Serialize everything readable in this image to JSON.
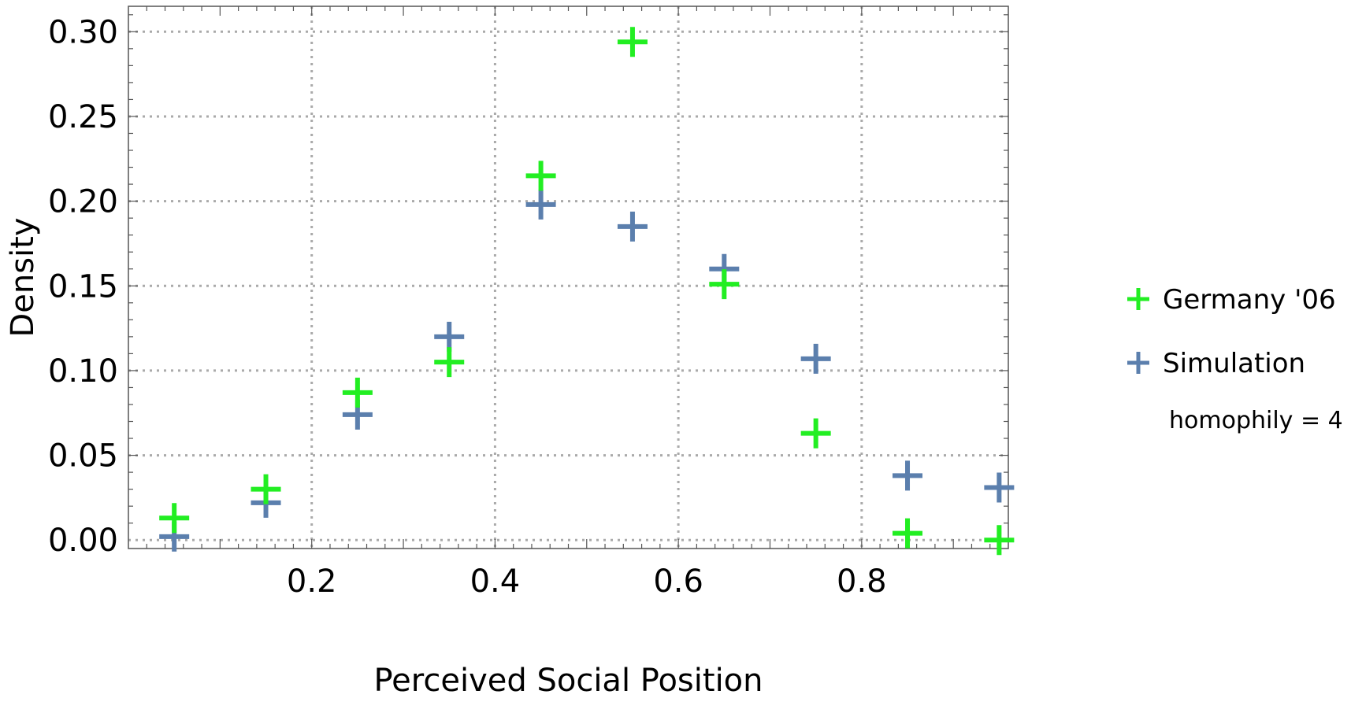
{
  "chart_data": {
    "type": "scatter",
    "title": "",
    "xlabel": "Perceived Social Position",
    "ylabel": "Density",
    "xlim": [
      0.0,
      0.96
    ],
    "ylim": [
      -0.005,
      0.315
    ],
    "xticks": [
      0.2,
      0.4,
      0.6,
      0.8
    ],
    "xtick_labels": [
      "0.2",
      "0.4",
      "0.6",
      "0.8"
    ],
    "yticks": [
      0.0,
      0.05,
      0.1,
      0.15,
      0.2,
      0.25,
      0.3
    ],
    "ytick_labels": [
      "0.00",
      "0.05",
      "0.10",
      "0.15",
      "0.20",
      "0.25",
      "0.30"
    ],
    "grid": true,
    "legend_position": "right",
    "legend_note": "homophily = 4",
    "series": [
      {
        "name": "Germany '06",
        "color": "#22ee22",
        "marker": "plus",
        "x": [
          0.05,
          0.15,
          0.25,
          0.35,
          0.45,
          0.55,
          0.65,
          0.75,
          0.85,
          0.95
        ],
        "y": [
          0.013,
          0.03,
          0.087,
          0.105,
          0.215,
          0.294,
          0.151,
          0.063,
          0.004,
          0.0
        ]
      },
      {
        "name": "Simulation",
        "color": "#5b7fad",
        "marker": "plus",
        "x": [
          0.05,
          0.15,
          0.25,
          0.35,
          0.45,
          0.55,
          0.65,
          0.75,
          0.85,
          0.95
        ],
        "y": [
          0.002,
          0.022,
          0.074,
          0.12,
          0.198,
          0.185,
          0.16,
          0.107,
          0.038,
          0.031
        ]
      }
    ]
  }
}
